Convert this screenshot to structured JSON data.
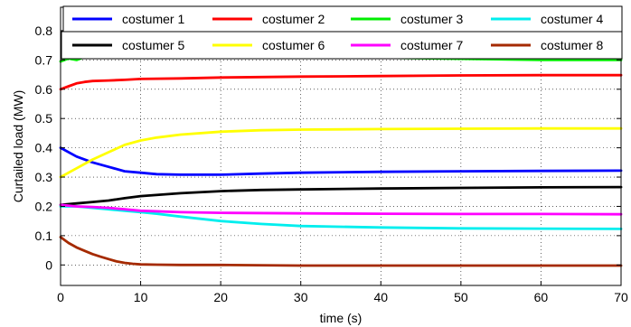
{
  "chart_data": {
    "type": "line",
    "title": "",
    "xlabel": "time (s)",
    "ylabel": "Curtailed load (MW)",
    "xlim": [
      0,
      70
    ],
    "ylim": [
      -0.07,
      0.88
    ],
    "xticks": [
      "0",
      "10",
      "20",
      "30",
      "40",
      "50",
      "60",
      "70"
    ],
    "yticks": [
      "0",
      "0.1",
      "0.2",
      "0.3",
      "0.4",
      "0.5",
      "0.6",
      "0.7",
      "0.8"
    ],
    "grid": true,
    "legend_position": "top",
    "series": [
      {
        "name": "costumer 1",
        "color": "#0000ff",
        "x": [
          0,
          2,
          4,
          6,
          8,
          10,
          12,
          15,
          20,
          25,
          30,
          40,
          50,
          60,
          70
        ],
        "y": [
          0.4,
          0.37,
          0.35,
          0.335,
          0.32,
          0.315,
          0.31,
          0.308,
          0.308,
          0.312,
          0.315,
          0.318,
          0.32,
          0.321,
          0.322
        ]
      },
      {
        "name": "costumer 2",
        "color": "#ff0000",
        "x": [
          0,
          1,
          2,
          3,
          4,
          6,
          8,
          10,
          15,
          20,
          30,
          40,
          50,
          60,
          70
        ],
        "y": [
          0.6,
          0.61,
          0.62,
          0.625,
          0.628,
          0.63,
          0.632,
          0.635,
          0.637,
          0.64,
          0.643,
          0.645,
          0.647,
          0.648,
          0.648
        ]
      },
      {
        "name": "costumer 3",
        "color": "#00ee00",
        "x": [
          0,
          1,
          2,
          3,
          4,
          6,
          8,
          10,
          12,
          15,
          20,
          30,
          40,
          50,
          60,
          70
        ],
        "y": [
          0.695,
          0.705,
          0.7,
          0.71,
          0.712,
          0.712,
          0.714,
          0.716,
          0.718,
          0.716,
          0.714,
          0.712,
          0.708,
          0.704,
          0.7,
          0.7
        ]
      },
      {
        "name": "costumer 4",
        "color": "#00eeee",
        "x": [
          0,
          2,
          4,
          6,
          8,
          10,
          12,
          15,
          20,
          25,
          30,
          40,
          50,
          60,
          70
        ],
        "y": [
          0.2,
          0.2,
          0.195,
          0.19,
          0.185,
          0.18,
          0.175,
          0.165,
          0.15,
          0.14,
          0.133,
          0.128,
          0.125,
          0.124,
          0.123
        ]
      },
      {
        "name": "costumer 5",
        "color": "#000000",
        "x": [
          0,
          2,
          4,
          6,
          8,
          10,
          15,
          20,
          25,
          30,
          40,
          50,
          60,
          70
        ],
        "y": [
          0.205,
          0.21,
          0.215,
          0.22,
          0.228,
          0.235,
          0.245,
          0.252,
          0.256,
          0.258,
          0.261,
          0.263,
          0.265,
          0.266
        ]
      },
      {
        "name": "costumer 6",
        "color": "#ffff00",
        "x": [
          0,
          2,
          4,
          6,
          8,
          10,
          12,
          15,
          20,
          25,
          30,
          40,
          50,
          60,
          70
        ],
        "y": [
          0.3,
          0.33,
          0.36,
          0.385,
          0.41,
          0.425,
          0.435,
          0.445,
          0.455,
          0.46,
          0.462,
          0.464,
          0.465,
          0.466,
          0.466
        ]
      },
      {
        "name": "costumer 7",
        "color": "#ff00ff",
        "x": [
          0,
          2,
          4,
          6,
          8,
          10,
          15,
          20,
          30,
          40,
          50,
          60,
          70
        ],
        "y": [
          0.205,
          0.2,
          0.198,
          0.195,
          0.19,
          0.185,
          0.18,
          0.178,
          0.176,
          0.175,
          0.174,
          0.174,
          0.173
        ]
      },
      {
        "name": "costumer 8",
        "color": "#a52a00",
        "x": [
          0,
          1,
          2,
          3,
          4,
          5,
          6,
          7,
          8,
          9,
          10,
          12,
          15,
          20,
          30,
          40,
          50,
          60,
          70
        ],
        "y": [
          0.095,
          0.075,
          0.06,
          0.048,
          0.037,
          0.028,
          0.02,
          0.012,
          0.007,
          0.004,
          0.002,
          0.001,
          0,
          0,
          -0.002,
          -0.002,
          -0.002,
          -0.002,
          -0.002
        ]
      }
    ]
  }
}
